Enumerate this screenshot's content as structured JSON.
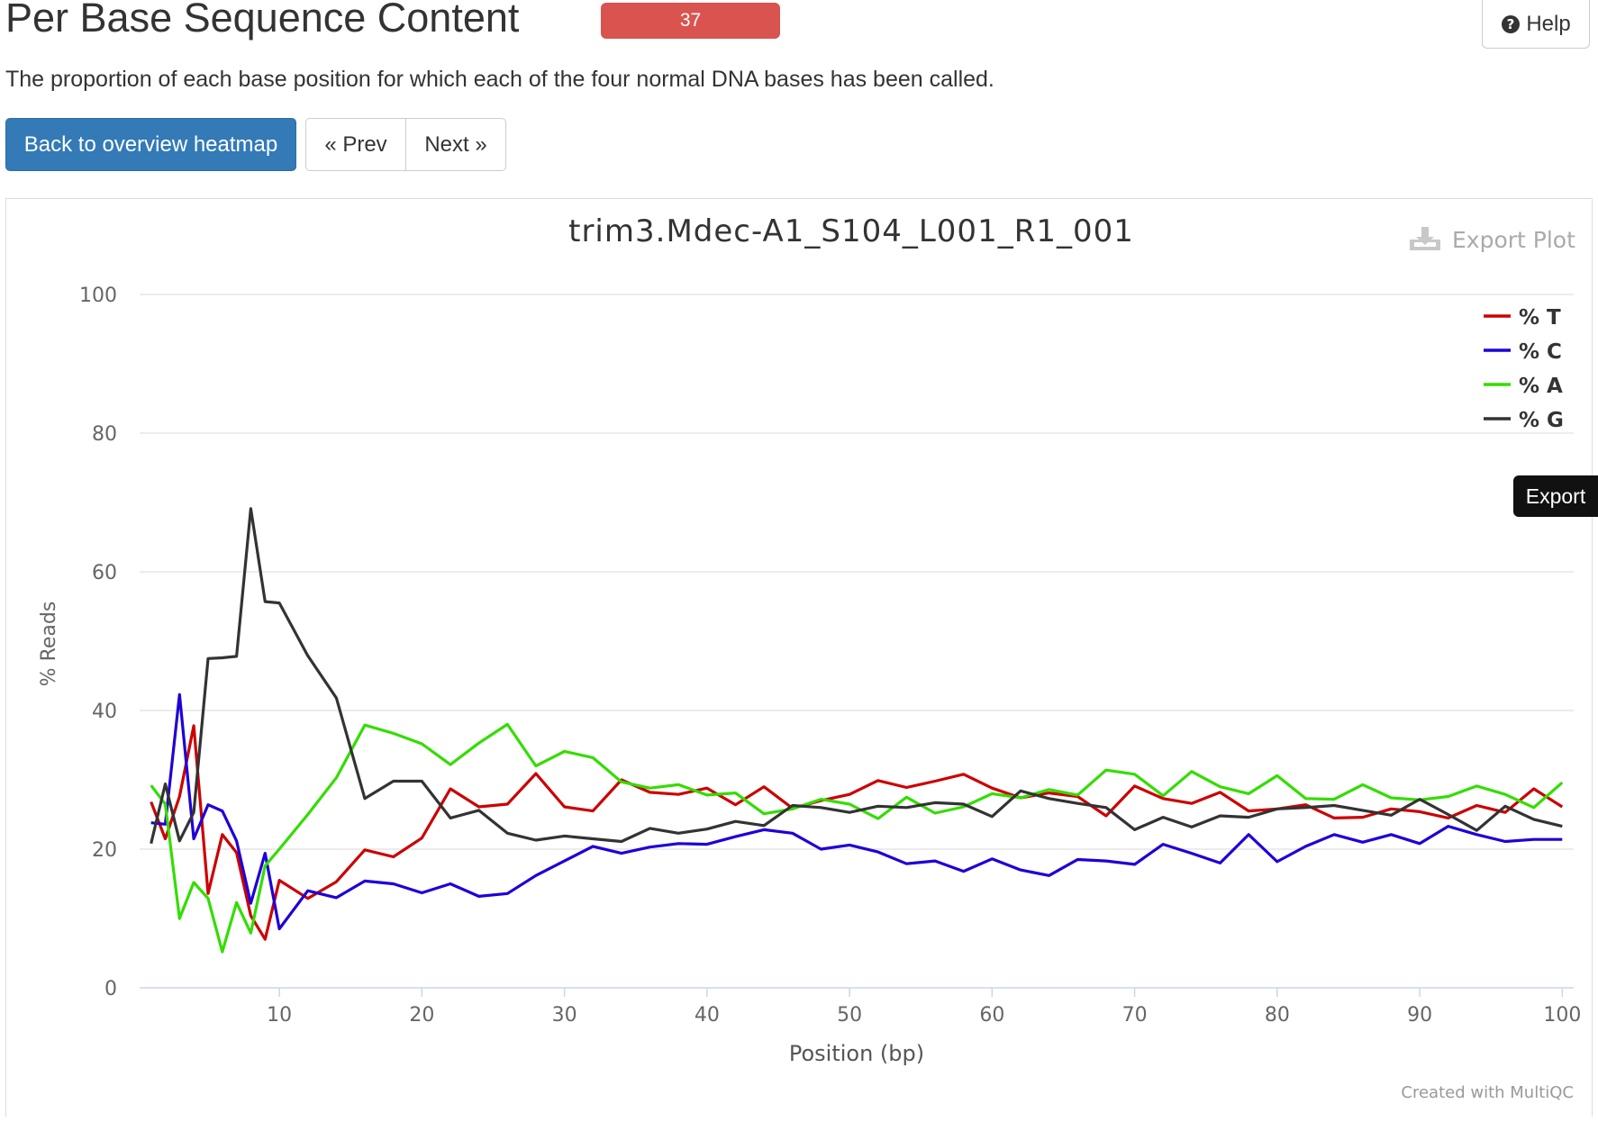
{
  "header": {
    "title": "Per Base Sequence Content",
    "badge": "37",
    "help_label": "Help"
  },
  "subtitle": "The proportion of each base position for which each of the four normal DNA bases has been called.",
  "nav": {
    "back_label": "Back to overview heatmap",
    "prev_label": "« Prev",
    "next_label": "Next »"
  },
  "plot": {
    "export_plot_label": "Export Plot",
    "credit": "Created with MultiQC"
  },
  "export_tab_label": "Export",
  "colors": {
    "badge": "#d9534f",
    "primary_button": "#337ab7",
    "T": "#cc0000",
    "C": "#1d00d9",
    "A": "#33dd00",
    "G": "#333333"
  },
  "chart_data": {
    "type": "line",
    "title": "trim3.Mdec-A1_S104_L001_R1_001",
    "xlabel": "Position (bp)",
    "ylabel": "% Reads",
    "xlim": [
      0.2,
      100.8
    ],
    "ylim": [
      0,
      100
    ],
    "x_ticks": [
      10,
      20,
      30,
      40,
      50,
      60,
      70,
      80,
      90,
      100
    ],
    "y_ticks": [
      0,
      20,
      40,
      60,
      80,
      100
    ],
    "grid": true,
    "legend_position": "top-right",
    "x": [
      1,
      2,
      3,
      4,
      5,
      6,
      7,
      8,
      9,
      10,
      12,
      14,
      16,
      18,
      20,
      22,
      24,
      26,
      28,
      30,
      32,
      34,
      36,
      38,
      40,
      42,
      44,
      46,
      48,
      50,
      52,
      54,
      56,
      58,
      60,
      62,
      64,
      66,
      68,
      70,
      72,
      74,
      76,
      78,
      80,
      82,
      84,
      86,
      88,
      90,
      92,
      94,
      96,
      98,
      100
    ],
    "series": [
      {
        "name": "% T",
        "color": "#cc0000",
        "values": [
          26.8,
          21.5,
          27.6,
          37.8,
          13.6,
          22.1,
          19.5,
          10.4,
          7.0,
          15.5,
          12.9,
          15.3,
          19.9,
          18.9,
          21.6,
          28.7,
          26.1,
          26.5,
          30.9,
          26.1,
          25.5,
          30.0,
          28.2,
          27.9,
          28.8,
          26.4,
          29.0,
          25.9,
          27.0,
          27.9,
          29.9,
          28.9,
          29.8,
          30.8,
          28.8,
          27.4,
          28.1,
          27.6,
          24.8,
          29.1,
          27.3,
          26.6,
          28.2,
          25.5,
          25.8,
          26.4,
          24.5,
          24.6,
          25.8,
          25.4,
          24.5,
          26.3,
          25.3,
          28.7,
          26.1
        ]
      },
      {
        "name": "% C",
        "color": "#1d00d9",
        "values": [
          23.8,
          23.6,
          42.3,
          21.5,
          26.4,
          25.5,
          21.2,
          12.2,
          19.4,
          8.5,
          14.0,
          13.0,
          15.4,
          15.0,
          13.7,
          15.0,
          13.2,
          13.6,
          16.2,
          18.3,
          20.4,
          19.4,
          20.3,
          20.8,
          20.7,
          21.8,
          22.8,
          22.3,
          20.0,
          20.6,
          19.6,
          17.9,
          18.3,
          16.8,
          18.6,
          17.0,
          16.2,
          18.5,
          18.3,
          17.8,
          20.7,
          19.4,
          18.0,
          22.1,
          18.2,
          20.4,
          22.1,
          21.0,
          22.1,
          20.8,
          23.3,
          22.1,
          21.1,
          21.4,
          21.4
        ]
      },
      {
        "name": "% A",
        "color": "#33dd00",
        "values": [
          29.2,
          26.5,
          10.0,
          15.2,
          12.9,
          5.2,
          12.3,
          7.9,
          17.6,
          20.0,
          25.0,
          30.3,
          37.9,
          36.7,
          35.2,
          32.2,
          35.3,
          38.0,
          32.0,
          34.1,
          33.2,
          29.7,
          28.8,
          29.3,
          27.8,
          28.1,
          25.1,
          25.8,
          27.2,
          26.5,
          24.4,
          27.5,
          25.2,
          26.1,
          28.0,
          27.4,
          28.6,
          27.8,
          31.4,
          30.8,
          27.7,
          31.2,
          29.0,
          28.0,
          30.6,
          27.3,
          27.2,
          29.3,
          27.4,
          27.1,
          27.6,
          29.1,
          27.9,
          26.0,
          29.6
        ]
      },
      {
        "name": "% G",
        "color": "#333333",
        "values": [
          20.8,
          29.4,
          21.2,
          25.3,
          47.5,
          47.6,
          47.8,
          69.1,
          55.7,
          55.5,
          47.9,
          41.8,
          27.3,
          29.8,
          29.8,
          24.5,
          25.6,
          22.3,
          21.3,
          21.9,
          21.5,
          21.1,
          23.0,
          22.3,
          22.9,
          24.0,
          23.4,
          26.3,
          26.0,
          25.3,
          26.2,
          26.0,
          26.7,
          26.5,
          24.7,
          28.4,
          27.3,
          26.6,
          26.0,
          22.8,
          24.6,
          23.2,
          24.8,
          24.6,
          25.8,
          26.0,
          26.3,
          25.6,
          24.9,
          27.2,
          25.0,
          22.7,
          26.2,
          24.3,
          23.3
        ]
      }
    ]
  }
}
